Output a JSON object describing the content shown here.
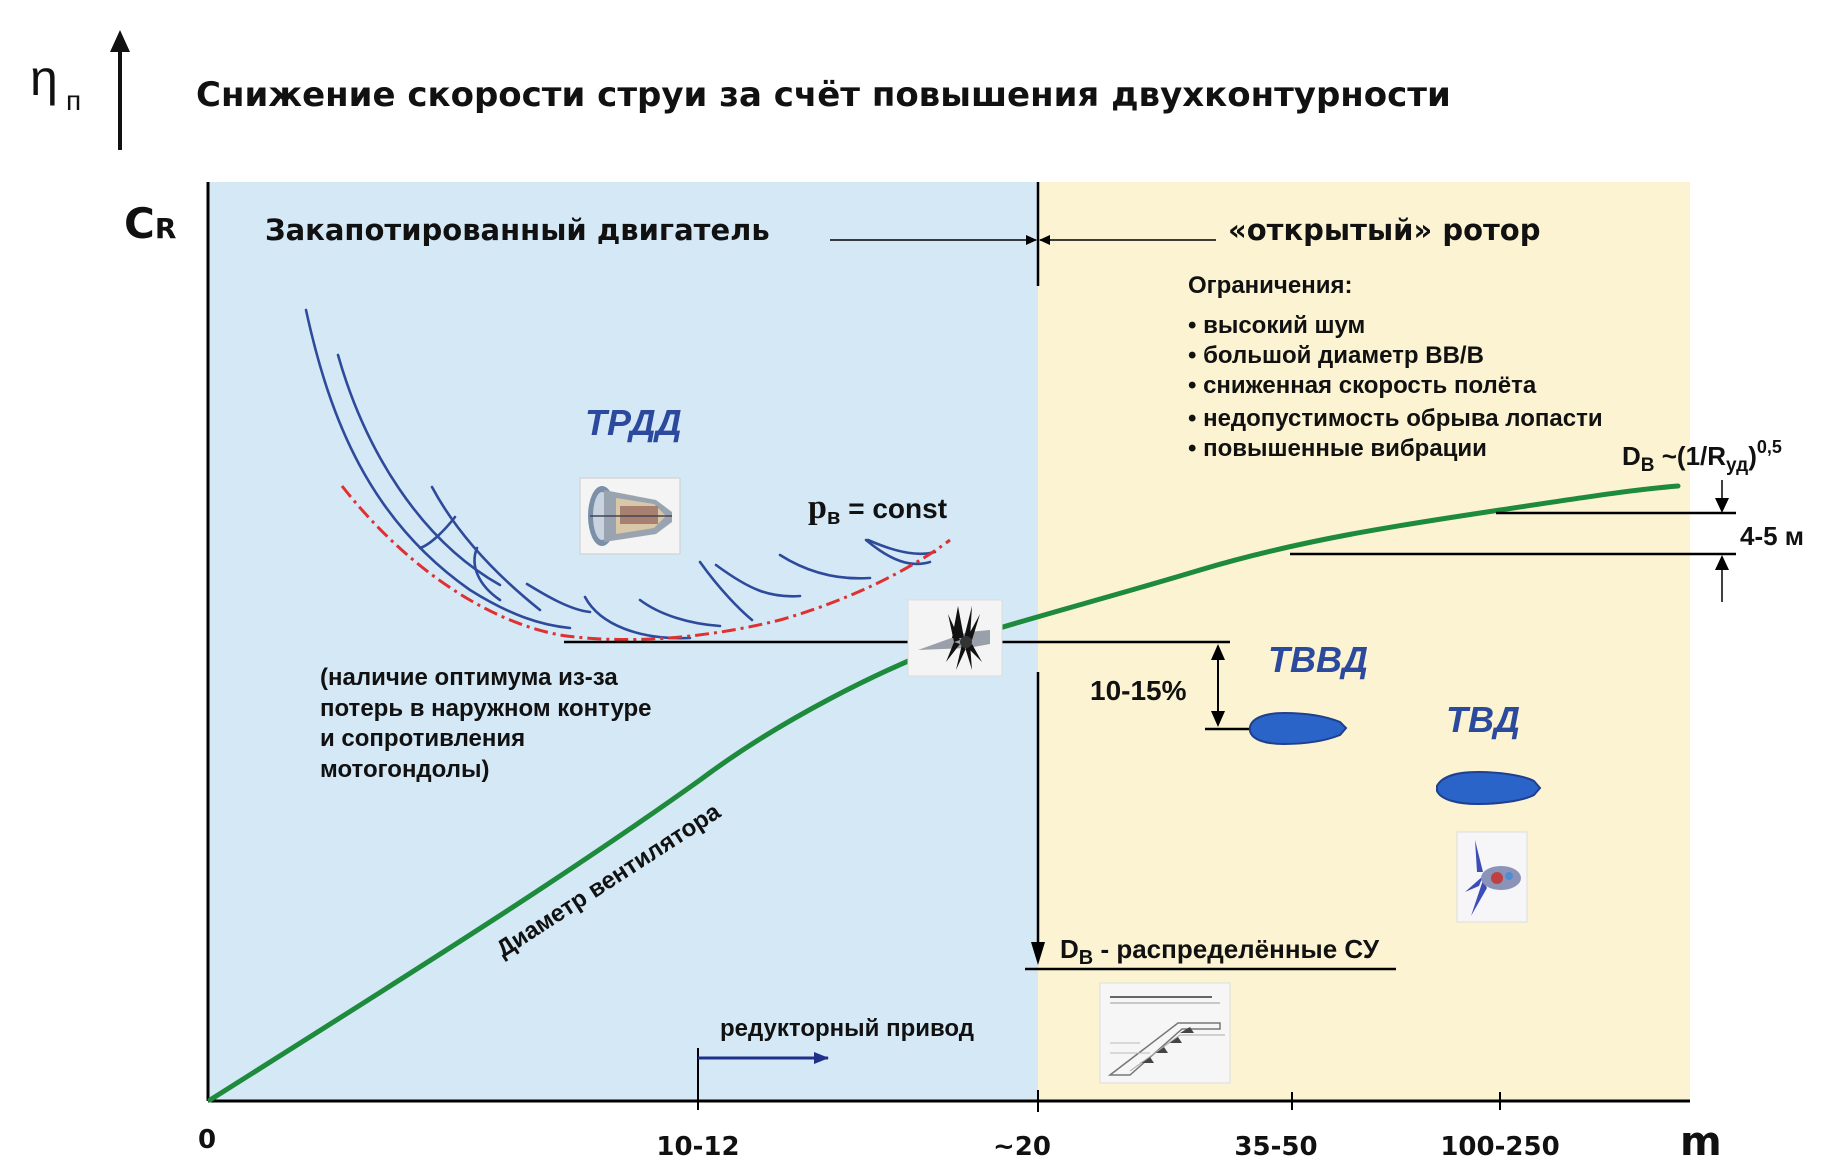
{
  "header": {
    "eta_symbol": "η",
    "eta_subscript": "п",
    "title": "Снижение скорости струи за счёт повышения двухконтурности"
  },
  "axes": {
    "y_label_main": "C",
    "y_label_sub": "R",
    "x_label": "m",
    "x_ticks": [
      "0",
      "10-12",
      "~20",
      "35-50",
      "100-250"
    ]
  },
  "regions": {
    "left_title": "Закапотированный двигатель",
    "right_title": "«открытый» ротор",
    "left_color": "#d4e8f6",
    "right_color": "#fbf3d2"
  },
  "limits": {
    "heading": "Ограничения:",
    "items": [
      "• высокий шум",
      "• большой диаметр ВВ/В",
      "• сниженная скорость полёта",
      "• недопустимость обрыва лопасти",
      "• повышенные вибрации"
    ]
  },
  "labels": {
    "trdd": "ТРДД",
    "tvvd": "ТВВД",
    "tvd": "ТВД",
    "pv_main": "p",
    "pv_sub": "в",
    "pv_rest": " = const",
    "optimum_lines": [
      "(наличие оптимума из-за",
      "потерь в наружном контуре",
      "и сопротивления",
      "мотогондолы)"
    ],
    "fan_diameter": "Диаметр вентилятора",
    "gear_drive": "редукторный привод",
    "dv_main": "D",
    "dv_sub": "В",
    "dv_rest": " - распределённые СУ",
    "dv_formula_main": "D",
    "dv_formula_sub": "В",
    "dv_formula_mid": " ~(1/R",
    "dv_formula_sub2": "уд",
    "dv_formula_end": ")",
    "dv_formula_exp": "0,5",
    "size_range": "4-5 м",
    "percent_range": "10-15%"
  },
  "colors": {
    "blue_curves": "#2e4a9a",
    "envelope": "#e03030",
    "green_line": "#1e8a3c",
    "label_blue": "#2b4a9e",
    "nacelle": "#2a64c8"
  },
  "icons": {
    "turbofan": "turbofan-engine-icon",
    "propfan": "propfan-icon",
    "turboprop": "turboprop-icon",
    "distributed": "distributed-propulsion-icon"
  }
}
